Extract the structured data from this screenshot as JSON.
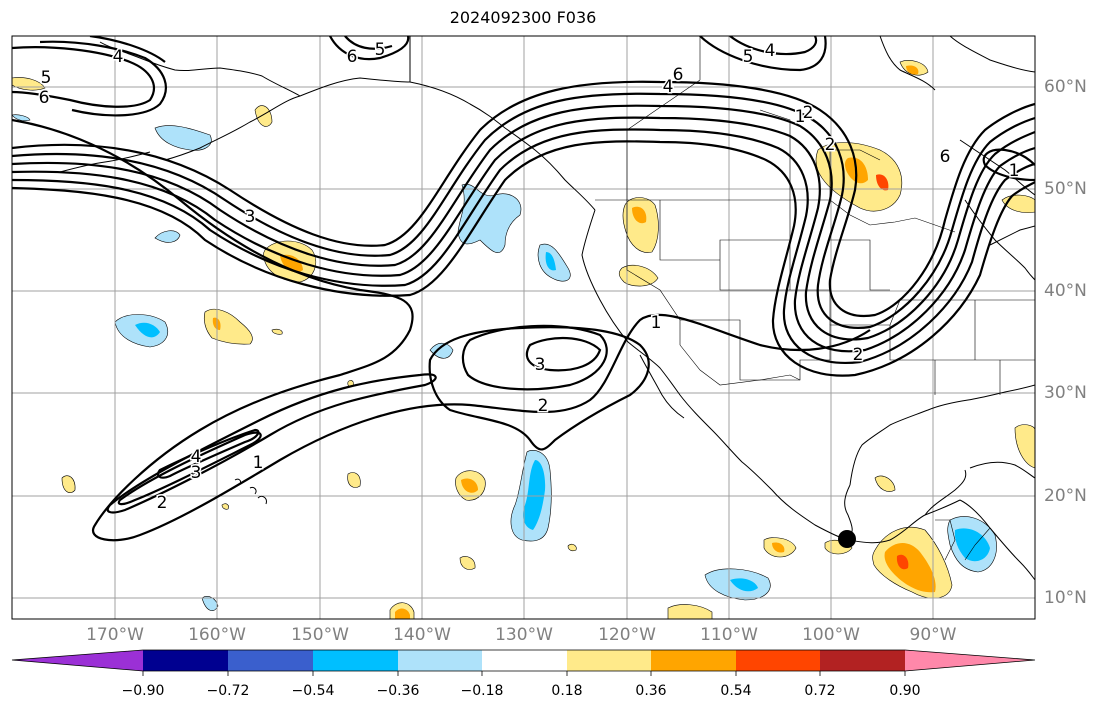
{
  "title": "2024092300 F036",
  "map": {
    "projection": "PlateCarree",
    "lon_range": [
      -180,
      -80
    ],
    "lat_range": [
      8,
      65
    ],
    "lon_labels": [
      "170°W",
      "160°W",
      "150°W",
      "140°W",
      "130°W",
      "120°W",
      "110°W",
      "100°W",
      "90°W"
    ],
    "lat_labels": [
      "60°N",
      "50°N",
      "40°N",
      "30°N",
      "20°N",
      "10°N"
    ],
    "contour_labels": [
      "6",
      "5",
      "4",
      "6",
      "5",
      "4",
      "6",
      "4",
      "2",
      "5",
      "6",
      "1",
      "1",
      "2",
      "3",
      "2",
      "1",
      "3",
      "4",
      "2",
      "2",
      "3",
      "1"
    ],
    "marker": {
      "name": "point",
      "lon": -98,
      "lat": 15.8
    }
  },
  "colorbar": {
    "ticks": [
      "−0.90",
      "−0.72",
      "−0.54",
      "−0.36",
      "−0.18",
      "0.18",
      "0.36",
      "0.54",
      "0.72",
      "0.90"
    ],
    "colors": [
      "#9b30d6",
      "#000090",
      "#3a5fcd",
      "#00bfff",
      "#aee2fa",
      "#ffffff",
      "#ffea8a",
      "#ffa500",
      "#ff4500",
      "#b22222",
      "#ff88aa"
    ]
  }
}
